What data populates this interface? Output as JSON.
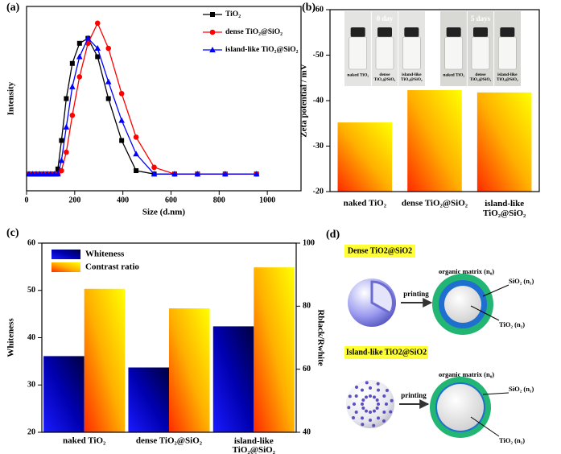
{
  "chart_data": [
    {
      "type": "line",
      "panel": "(a)",
      "xlabel": "Size (d.nm)",
      "ylabel": "Intensity",
      "x": [
        10,
        25,
        40,
        55,
        70,
        85,
        100,
        115,
        130,
        145,
        165,
        190,
        220,
        255,
        295,
        340,
        395,
        455,
        530,
        615,
        710,
        825,
        955
      ],
      "series": [
        {
          "name": "TiO₂",
          "color": "#000000",
          "marker": "square",
          "values": [
            0,
            0,
            0,
            0,
            0,
            0,
            0,
            0,
            3,
            20,
            45,
            66,
            78,
            81,
            70,
            45,
            20,
            2,
            0,
            0,
            0,
            0,
            0
          ]
        },
        {
          "name": "dense TiO₂@SiO₂",
          "color": "#ff0000",
          "marker": "circle",
          "values": [
            0,
            0,
            0,
            0,
            0,
            0,
            0,
            0,
            0,
            2,
            13,
            35,
            58,
            78,
            90,
            75,
            48,
            22,
            4,
            0,
            0,
            0,
            0
          ]
        },
        {
          "name": "island-like TiO₂@SiO₂",
          "color": "#0000ff",
          "marker": "triangle",
          "values": [
            0,
            0,
            0,
            0,
            0,
            0,
            0,
            0,
            0,
            8,
            28,
            52,
            70,
            81,
            75,
            55,
            32,
            12,
            0,
            0,
            0,
            0,
            0
          ]
        }
      ],
      "xlim": [
        0,
        1140
      ],
      "xticks": [
        0,
        200,
        400,
        600,
        800,
        1000
      ],
      "ylim": [
        -10,
        100
      ],
      "legend": "upper right"
    },
    {
      "type": "bar",
      "panel": "(b)",
      "ylabel": "Zeta potential / mV",
      "categories": [
        "naked TiO₂",
        "dense TiO₂@SiO₂",
        "island-like TiO₂@SiO₂"
      ],
      "values": [
        -35.2,
        -42.3,
        -41.8
      ],
      "gradient": [
        "#ff2a00",
        "#ffb000",
        "#ffff00"
      ],
      "ylim": [
        -20,
        -60
      ],
      "yticks": [
        -20,
        -30,
        -40,
        -50,
        -60
      ],
      "inset": [
        {
          "label": "0 day",
          "samples": [
            "naked TiO₂",
            "dense TiO₂@SiO₂",
            "island-like TiO₂@SiO₂"
          ]
        },
        {
          "label": "5 days",
          "samples": [
            "naked TiO₂",
            "dense TiO₂@SiO₂",
            "island-like TiO₂@SiO₂"
          ]
        }
      ]
    },
    {
      "type": "grouped_bar",
      "panel": "(c)",
      "ylabel": "Whiteness",
      "y2label": "Rblack/Rwhite",
      "categories": [
        "naked TiO₂",
        "dense TiO₂@SiO₂",
        "island-like TiO₂@SiO₂"
      ],
      "series": [
        {
          "name": "Whiteness",
          "gradient": [
            "#1a1aff",
            "#0000b0",
            "#000040"
          ],
          "values": [
            36.1,
            33.7,
            42.4
          ]
        },
        {
          "name": "Contrast ratio",
          "gradient": [
            "#ff2a00",
            "#ffb000",
            "#ffff00"
          ],
          "axis": "y2",
          "values": [
            85.5,
            79.3,
            92.3
          ]
        }
      ],
      "ylim": [
        20,
        60
      ],
      "yticks": [
        20,
        30,
        40,
        50,
        60
      ],
      "y2lim": [
        40,
        100
      ],
      "y2ticks": [
        40,
        60,
        80,
        100
      ],
      "legend": "upper left"
    }
  ],
  "diagram": {
    "panel": "(d)",
    "groups": [
      {
        "title": "Dense TiO2@SiO2",
        "arrow": "printing",
        "labels": [
          "organic matrix (n₀)",
          "SiO₂ (n₁)",
          "TiO₂ (n₂)"
        ]
      },
      {
        "title": "Island-like TiO2@SiO2",
        "arrow": "printing",
        "labels": [
          "organic matrix (n₀)",
          "SiO₂ (n₁)",
          "TiO₂ (n₂)"
        ]
      }
    ]
  }
}
